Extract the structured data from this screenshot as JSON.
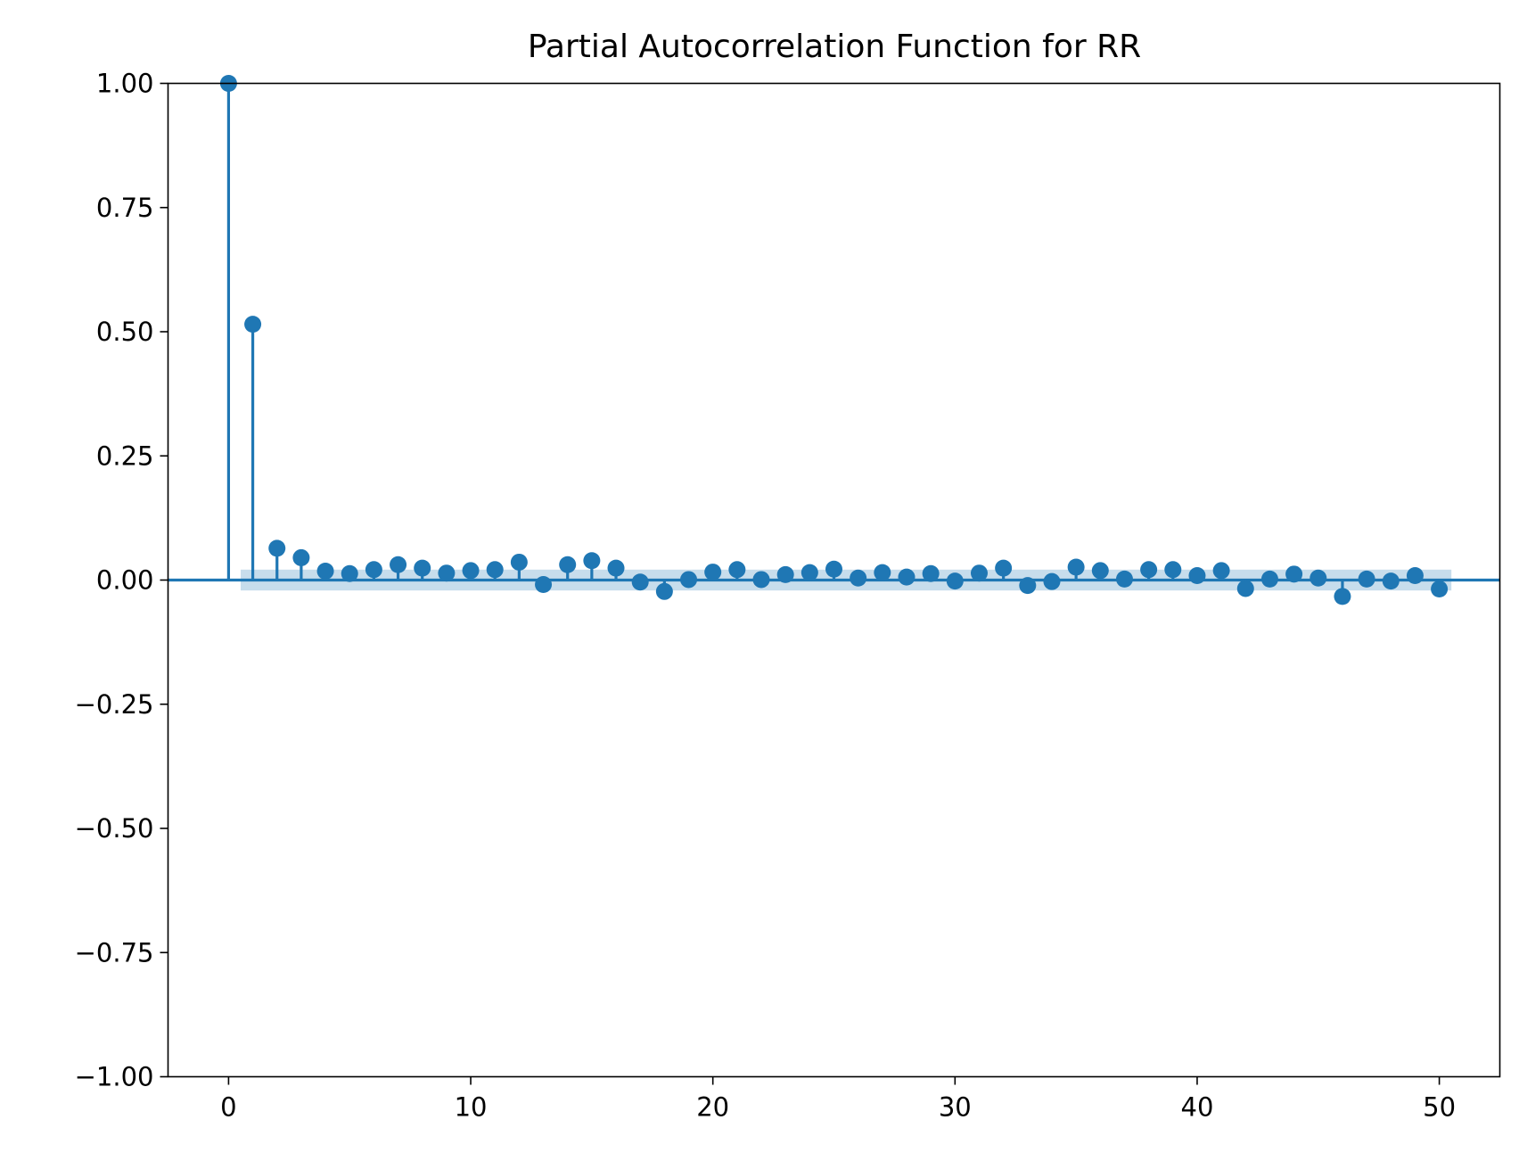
{
  "chart_data": {
    "type": "scatter",
    "subtype": "stem",
    "title": "Partial Autocorrelation Function for RR",
    "xlabel": "",
    "ylabel": "",
    "xlim": [
      -2.5,
      52.5
    ],
    "ylim": [
      -1.0,
      1.0
    ],
    "x_ticks": [
      0,
      10,
      20,
      30,
      40,
      50
    ],
    "x_tick_labels": [
      "0",
      "10",
      "20",
      "30",
      "40",
      "50"
    ],
    "y_ticks": [
      1.0,
      0.75,
      0.5,
      0.25,
      0.0,
      -0.25,
      -0.5,
      -0.75,
      -1.0
    ],
    "y_tick_labels": [
      "1.00",
      "0.75",
      "0.50",
      "0.25",
      "0.00",
      "−0.25",
      "−0.50",
      "−0.75",
      "−1.00"
    ],
    "grid": false,
    "legend": "none",
    "series_color": "#1f77b4",
    "confidence_band_color": "#1f77b4",
    "confidence_band": {
      "x_start": 0.5,
      "x_end": 50.5,
      "lower": -0.021,
      "upper": 0.021
    },
    "lags": [
      0,
      1,
      2,
      3,
      4,
      5,
      6,
      7,
      8,
      9,
      10,
      11,
      12,
      13,
      14,
      15,
      16,
      17,
      18,
      19,
      20,
      21,
      22,
      23,
      24,
      25,
      26,
      27,
      28,
      29,
      30,
      31,
      32,
      33,
      34,
      35,
      36,
      37,
      38,
      39,
      40,
      41,
      42,
      43,
      44,
      45,
      46,
      47,
      48,
      49,
      50
    ],
    "values": [
      1.0,
      0.515,
      0.064,
      0.045,
      0.018,
      0.013,
      0.021,
      0.031,
      0.024,
      0.014,
      0.019,
      0.021,
      0.036,
      -0.009,
      0.031,
      0.039,
      0.024,
      -0.004,
      -0.023,
      0.001,
      0.016,
      0.021,
      0.001,
      0.011,
      0.015,
      0.022,
      0.004,
      0.015,
      0.006,
      0.013,
      -0.002,
      0.014,
      0.024,
      -0.011,
      -0.003,
      0.026,
      0.019,
      0.002,
      0.021,
      0.021,
      0.009,
      0.019,
      -0.017,
      0.002,
      0.012,
      0.004,
      -0.033,
      0.002,
      -0.002,
      0.009,
      -0.018
    ]
  }
}
